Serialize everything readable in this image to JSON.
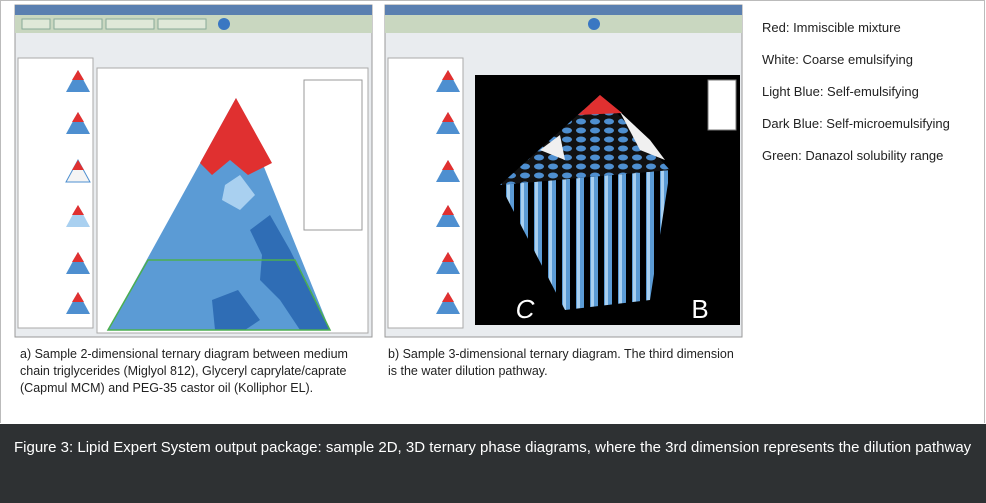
{
  "legend": [
    "Red: Immiscible mixture",
    "White: Coarse emulsifying",
    "Light Blue: Self-emulsifying",
    "Dark Blue: Self-microemulsifying",
    "Green: Danazol solubility range"
  ],
  "caption_a": "a) Sample 2-dimensional ternary diagram between medium chain triglycerides (Miglyol 812), Glyceryl caprylate/caprate (Capmul MCM) and PEG-35 castor oil (Kolliphor EL).",
  "caption_b": "b) Sample 3-dimensional ternary diagram. The third dimension is the water dilution pathway.",
  "screenshot_b_labels": [
    "C",
    "B"
  ],
  "figure_caption": "Figure 3: Lipid Expert System output package: sample 2D, 3D ternary phase diagrams, where the 3rd dimension represents the dilution pathway"
}
